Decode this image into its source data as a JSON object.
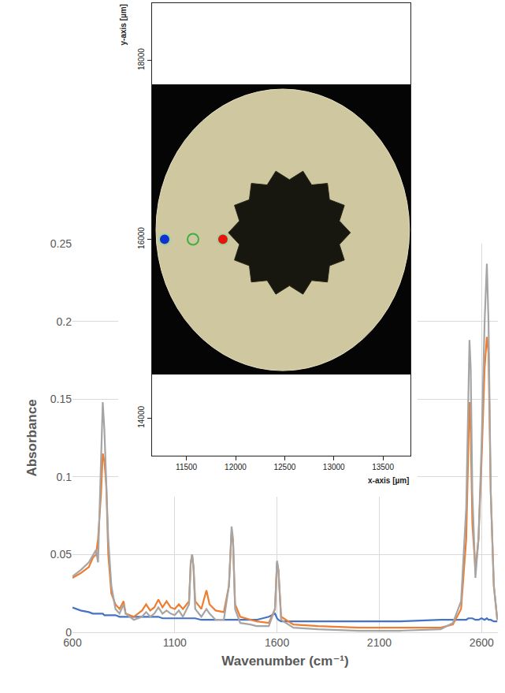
{
  "chart_data": [
    {
      "type": "line",
      "x_label": "Wavenumber (cm⁻¹)",
      "y_label": "Absorbance",
      "x": [
        600,
        640,
        680,
        700,
        715,
        725,
        740,
        748,
        756,
        765,
        775,
        790,
        810,
        830,
        850,
        860,
        900,
        940,
        960,
        980,
        1000,
        1020,
        1040,
        1060,
        1080,
        1100,
        1120,
        1140,
        1170,
        1178,
        1185,
        1192,
        1200,
        1230,
        1255,
        1270,
        1300,
        1340,
        1365,
        1378,
        1385,
        1395,
        1420,
        1470,
        1500,
        1560,
        1590,
        1600,
        1607,
        1620,
        1680,
        1800,
        2000,
        2200,
        2400,
        2460,
        2500,
        2525,
        2535,
        2541,
        2547,
        2555,
        2570,
        2585,
        2600,
        2615,
        2626,
        2634,
        2645,
        2660,
        2677
      ],
      "series": [
        {
          "color": "#4472c4",
          "values": [
            0.016,
            0.014,
            0.013,
            0.012,
            0.012,
            0.012,
            0.012,
            0.012,
            0.011,
            0.011,
            0.011,
            0.011,
            0.011,
            0.01,
            0.01,
            0.01,
            0.01,
            0.01,
            0.01,
            0.01,
            0.01,
            0.01,
            0.009,
            0.009,
            0.009,
            0.009,
            0.009,
            0.009,
            0.009,
            0.009,
            0.009,
            0.009,
            0.009,
            0.008,
            0.008,
            0.008,
            0.008,
            0.008,
            0.008,
            0.008,
            0.008,
            0.008,
            0.008,
            0.008,
            0.008,
            0.01,
            0.012,
            0.009,
            0.008,
            0.007,
            0.007,
            0.007,
            0.007,
            0.007,
            0.008,
            0.008,
            0.008,
            0.008,
            0.009,
            0.009,
            0.009,
            0.009,
            0.008,
            0.008,
            0.009,
            0.008,
            0.009,
            0.008,
            0.008,
            0.007,
            0.007
          ]
        },
        {
          "color": "#ed7d31",
          "values": [
            0.035,
            0.038,
            0.042,
            0.048,
            0.05,
            0.06,
            0.09,
            0.115,
            0.11,
            0.095,
            0.05,
            0.025,
            0.018,
            0.015,
            0.02,
            0.012,
            0.01,
            0.014,
            0.018,
            0.014,
            0.016,
            0.021,
            0.016,
            0.02,
            0.016,
            0.015,
            0.018,
            0.015,
            0.02,
            0.044,
            0.05,
            0.042,
            0.02,
            0.015,
            0.027,
            0.018,
            0.014,
            0.013,
            0.03,
            0.065,
            0.058,
            0.018,
            0.01,
            0.008,
            0.007,
            0.006,
            0.015,
            0.045,
            0.04,
            0.01,
            0.005,
            0.004,
            0.003,
            0.003,
            0.003,
            0.005,
            0.015,
            0.06,
            0.12,
            0.148,
            0.13,
            0.07,
            0.04,
            0.06,
            0.11,
            0.17,
            0.19,
            0.18,
            0.09,
            0.03,
            0.008
          ]
        },
        {
          "color": "#a5a5a5",
          "values": [
            0.036,
            0.04,
            0.045,
            0.05,
            0.053,
            0.045,
            0.12,
            0.148,
            0.13,
            0.1,
            0.06,
            0.03,
            0.015,
            0.012,
            0.018,
            0.012,
            0.008,
            0.01,
            0.013,
            0.01,
            0.012,
            0.016,
            0.012,
            0.014,
            0.012,
            0.011,
            0.014,
            0.01,
            0.018,
            0.045,
            0.05,
            0.04,
            0.015,
            0.01,
            0.015,
            0.012,
            0.008,
            0.008,
            0.03,
            0.068,
            0.06,
            0.015,
            0.006,
            0.005,
            0.004,
            0.004,
            0.015,
            0.046,
            0.04,
            0.008,
            0.003,
            0.002,
            0.001,
            0.001,
            0.002,
            0.006,
            0.02,
            0.08,
            0.16,
            0.188,
            0.17,
            0.09,
            0.035,
            0.06,
            0.12,
            0.2,
            0.237,
            0.2,
            0.09,
            0.03,
            0.008
          ]
        }
      ],
      "xlim": [
        600,
        2680
      ],
      "xticks": [
        600,
        1100,
        1600,
        2100,
        2600
      ],
      "ylim": [
        0,
        0.25
      ],
      "yticks": [
        0,
        0.05,
        0.1,
        0.15,
        0.2,
        0.25
      ],
      "grid": true
    },
    {
      "type": "scatter",
      "x_label": "x-axis [µm]",
      "y_label": "y-axis [µm]",
      "xlim": [
        11150,
        13780
      ],
      "xticks": [
        11500,
        12000,
        12500,
        13000,
        13500
      ],
      "ylim": [
        13580,
        18640
      ],
      "yticks": [
        14000,
        16000,
        18000
      ],
      "grid": false,
      "regions": [
        {
          "x": [
            11150,
            13780
          ],
          "y": [
            14487,
            17732
          ]
        },
        {
          "x": [
            11190,
            13770
          ],
          "y": [
            14531,
            17679
          ]
        },
        {
          "x": [
            11927,
            13169
          ],
          "y": [
            15368,
            16779
          ]
        }
      ],
      "series": [
        {
          "x": [
            11278
          ],
          "values": [
            16000
          ],
          "color": "#1530d0",
          "marker": "circle"
        },
        {
          "x": [
            11567
          ],
          "values": [
            16000
          ],
          "color": "#3cb043",
          "marker": "circle-open"
        },
        {
          "x": [
            11871
          ],
          "values": [
            16000
          ],
          "color": "#e8140c",
          "marker": "circle"
        }
      ]
    }
  ]
}
